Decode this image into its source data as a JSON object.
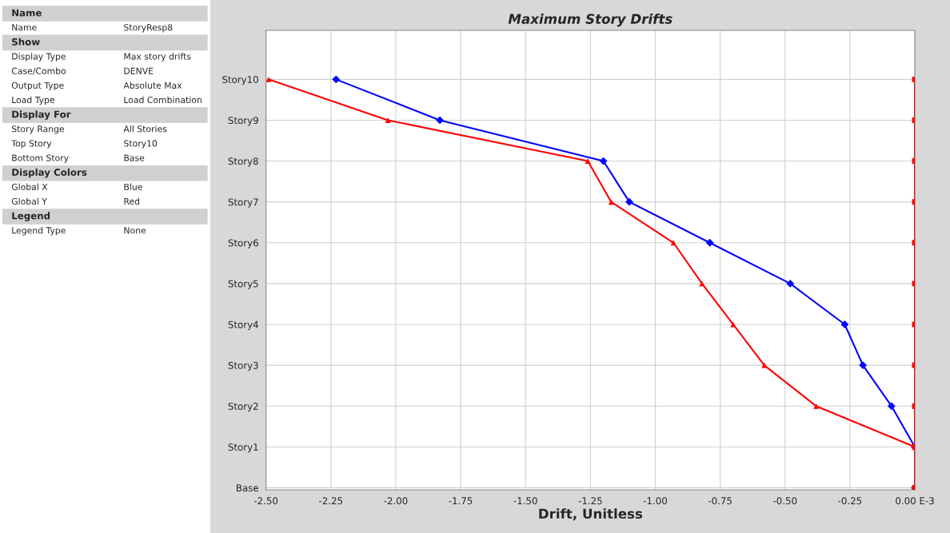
{
  "chart_data": {
    "type": "line",
    "orientation": "horizontal",
    "title": "Maximum Story Drifts",
    "xlabel": "Drift, Unitless",
    "categories": [
      "Story10",
      "Story9",
      "Story8",
      "Story7",
      "Story6",
      "Story5",
      "Story4",
      "Story3",
      "Story2",
      "Story1",
      "Base"
    ],
    "series": [
      {
        "color": "#0000ff",
        "marker": "diamond",
        "values": [
          -2.23,
          -1.83,
          -1.2,
          -1.1,
          -0.79,
          -0.48,
          -0.27,
          -0.2,
          -0.09,
          0,
          0
        ]
      },
      {
        "color": "#ff0000",
        "marker": "triangle",
        "values": [
          -2.49,
          -2.03,
          -1.26,
          -1.17,
          -0.93,
          -0.82,
          -0.7,
          -0.58,
          -0.38,
          0,
          0
        ]
      },
      {
        "color": "#ff0000",
        "marker": "square",
        "values": [
          0,
          0,
          0,
          0,
          0,
          0,
          0,
          0,
          0,
          0,
          0
        ]
      }
    ],
    "xlim": [
      -2.5,
      0
    ],
    "xticks": [
      {
        "value": -2.5,
        "label": "-2.50"
      },
      {
        "value": -2.25,
        "label": "-2.25"
      },
      {
        "value": -2.0,
        "label": "-2.00"
      },
      {
        "value": -1.75,
        "label": "-1.75"
      },
      {
        "value": -1.5,
        "label": "-1.50"
      },
      {
        "value": -1.25,
        "label": "-1.25"
      },
      {
        "value": -1.0,
        "label": "-1.00"
      },
      {
        "value": -0.75,
        "label": "-0.75"
      },
      {
        "value": -0.5,
        "label": "-0.50"
      },
      {
        "value": -0.25,
        "label": "-0.25"
      },
      {
        "value": 0,
        "label": "0.00 E-3"
      }
    ],
    "grid": true,
    "line_style": "solid",
    "annotations": [
      "Name",
      "Name",
      "StoryResp8",
      "Show",
      "Display Type",
      "Max story drifts",
      "Case/Combo",
      "DENVE",
      "Output Type",
      "Absolute Max",
      "Load Type",
      "Load Combination",
      "Display For",
      "Story Range",
      "All Stories",
      "Top Story",
      "Story10",
      "Bottom Story",
      "Base",
      "Display Colors",
      "Global X",
      "Blue",
      "Global Y",
      "Red",
      "Legend",
      "Legend Type",
      "None"
    ]
  }
}
